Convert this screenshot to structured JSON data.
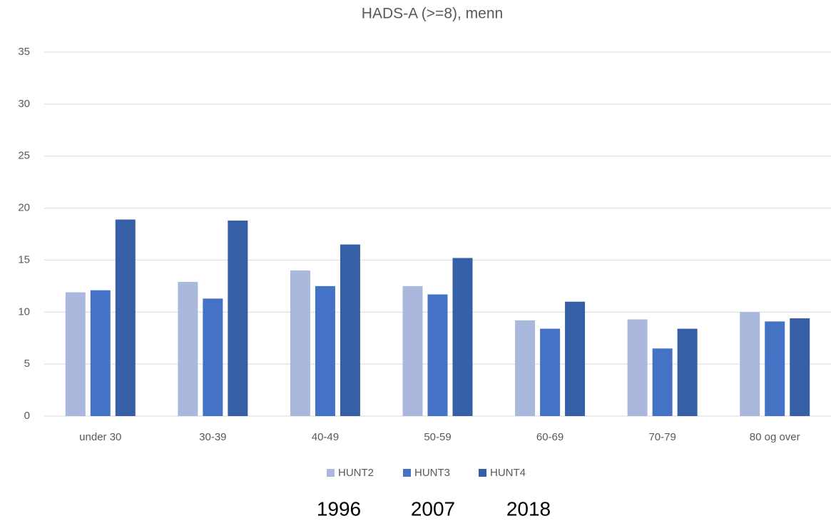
{
  "chart_data": {
    "type": "bar",
    "title": "HADS-A (>=8), menn",
    "categories": [
      "under 30",
      "30-39",
      "40-49",
      "50-59",
      "60-69",
      "70-79",
      "80 og over"
    ],
    "series": [
      {
        "name": "HUNT2",
        "color": "#a9b8dc",
        "values": [
          11.9,
          12.9,
          14.0,
          12.5,
          9.2,
          9.3,
          10.0
        ]
      },
      {
        "name": "HUNT3",
        "color": "#4472c4",
        "values": [
          12.1,
          11.3,
          12.5,
          11.7,
          8.4,
          6.5,
          9.1
        ]
      },
      {
        "name": "HUNT4",
        "color": "#365fa6",
        "values": [
          18.9,
          18.8,
          16.5,
          15.2,
          11.0,
          8.4,
          9.4
        ]
      }
    ],
    "ylim": [
      0,
      35
    ],
    "yticks": [
      0,
      5,
      10,
      15,
      20,
      25,
      30,
      35
    ],
    "grid": true,
    "annotations": [
      "1996",
      "2007",
      "2018"
    ]
  }
}
